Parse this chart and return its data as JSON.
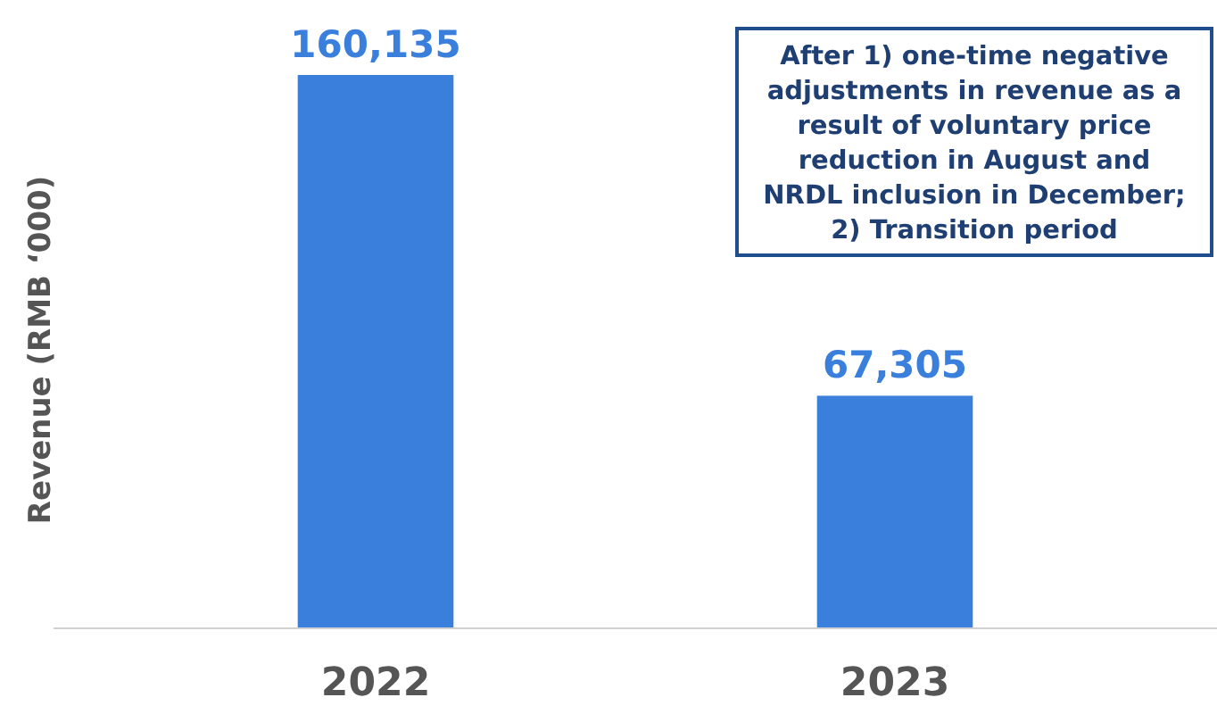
{
  "chart_data": {
    "type": "bar",
    "ylabel": "Revenue (RMB ‘000)",
    "categories": [
      "2022",
      "2023"
    ],
    "values": [
      160135,
      67305
    ],
    "color": "#3a7fdc",
    "data_labels": true,
    "value_labels": [
      "160,135",
      "67,305"
    ],
    "annotations": [
      "After 1) one-time negative adjustments in revenue as a result of voluntary price reduction in August and NRDL inclusion in December; 2) Transition period"
    ]
  }
}
